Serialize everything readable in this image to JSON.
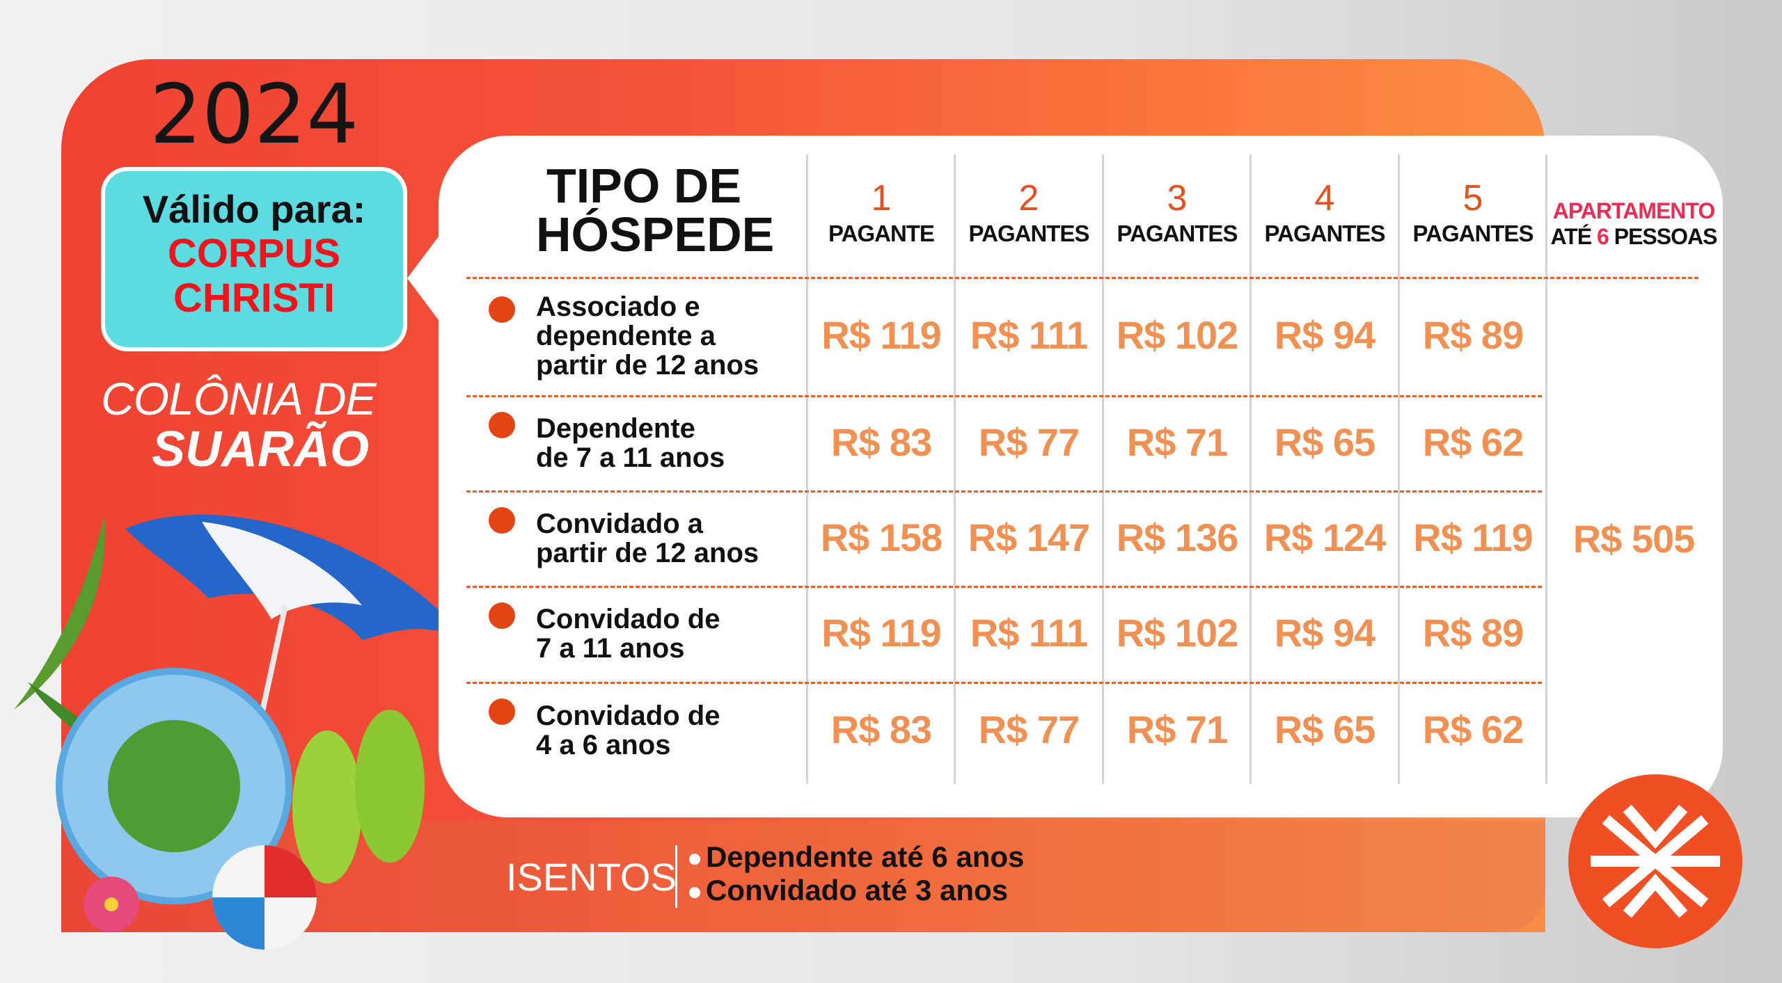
{
  "year": "2024",
  "valid": {
    "label": "Válido para:",
    "line1": "CORPUS",
    "line2": "CHRISTI"
  },
  "brand": {
    "line1": "COLÔNIA DE",
    "line2": "SUARÃO"
  },
  "table": {
    "title_line1": "TIPO DE",
    "title_line2": "HÓSPEDE",
    "columns": [
      {
        "number": "1",
        "label": "PAGANTE"
      },
      {
        "number": "2",
        "label": "PAGANTES"
      },
      {
        "number": "3",
        "label": "PAGANTES"
      },
      {
        "number": "4",
        "label": "PAGANTES"
      },
      {
        "number": "5",
        "label": "PAGANTES"
      }
    ],
    "apartment": {
      "title": "APARTAMENTO",
      "prefix": "ATÉ",
      "count": "6",
      "suffix": "PESSOAS",
      "price": "R$ 505"
    },
    "rows": [
      {
        "label": [
          "Associado e",
          "dependente a",
          "partir de 12 anos"
        ],
        "prices": [
          "R$ 119",
          "R$ 111",
          "R$ 102",
          "R$ 94",
          "R$ 89"
        ]
      },
      {
        "label": [
          "Dependente",
          "de 7 a 11 anos"
        ],
        "prices": [
          "R$ 83",
          "R$ 77",
          "R$ 71",
          "R$ 65",
          "R$ 62"
        ]
      },
      {
        "label": [
          "Convidado a",
          "partir de 12 anos"
        ],
        "prices": [
          "R$ 158",
          "R$ 147",
          "R$ 136",
          "R$ 124",
          "R$ 119"
        ]
      },
      {
        "label": [
          "Convidado de",
          "7 a 11 anos"
        ],
        "prices": [
          "R$ 119",
          "R$ 111",
          "R$ 102",
          "R$ 94",
          "R$ 89"
        ]
      },
      {
        "label": [
          "Convidado de",
          "4 a 6 anos"
        ],
        "prices": [
          "R$ 83",
          "R$ 77",
          "R$ 71",
          "R$ 65",
          "R$ 62"
        ]
      }
    ]
  },
  "exempt": {
    "title": "ISENTOS",
    "items": [
      "Dependente até 6 anos",
      "Convidado até 3 anos"
    ]
  },
  "colors": {
    "banner": "#f5523a",
    "accent": "#e2511e",
    "price": "#f09153",
    "valid_box": "#5cdbe0",
    "highlight": "#f0141c"
  }
}
